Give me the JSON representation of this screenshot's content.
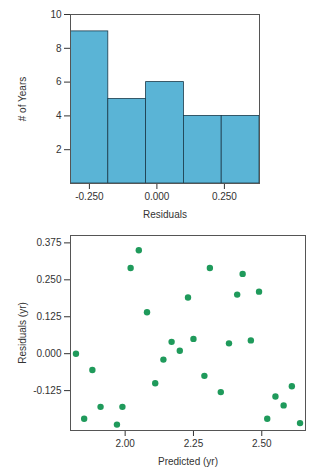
{
  "chart_data": [
    {
      "type": "histogram",
      "xlabel": "Residuals",
      "ylabel": "# of Years",
      "bins": [
        -0.32,
        -0.18,
        -0.04,
        0.1,
        0.24,
        0.38
      ],
      "counts": [
        9,
        5,
        6,
        4,
        4
      ],
      "color": "#5ab4d6",
      "xlim": [
        -0.32,
        0.38
      ],
      "xticks": [
        {
          "value": -0.25,
          "label": "-0.250"
        },
        {
          "value": 0,
          "label": "0.000"
        },
        {
          "value": 0.25,
          "label": "0.250"
        }
      ],
      "ylim": [
        0,
        10
      ],
      "yticks": [
        2,
        4,
        6,
        8,
        10
      ],
      "grid": false
    },
    {
      "type": "scatter",
      "xlabel": "Predicted (yr)",
      "ylabel": "Residuals (yr)",
      "x": [
        1.82,
        1.85,
        1.88,
        1.91,
        1.97,
        1.99,
        2.02,
        2.05,
        2.08,
        2.11,
        2.14,
        2.17,
        2.2,
        2.23,
        2.25,
        2.29,
        2.31,
        2.35,
        2.38,
        2.41,
        2.43,
        2.46,
        2.49,
        2.52,
        2.55,
        2.58,
        2.61,
        2.64
      ],
      "values": [
        0.0,
        -0.22,
        -0.055,
        -0.18,
        -0.24,
        -0.18,
        0.29,
        0.35,
        0.14,
        -0.1,
        -0.02,
        0.04,
        0.01,
        0.19,
        0.05,
        -0.075,
        0.29,
        -0.13,
        0.035,
        0.2,
        0.27,
        0.045,
        0.21,
        -0.22,
        -0.145,
        -0.175,
        -0.11,
        -0.235
      ],
      "color": "#1f9a5b",
      "marker": "circle",
      "xlim": [
        1.8,
        2.66
      ],
      "xticks": [
        {
          "value": 2,
          "label": "2.00"
        },
        {
          "value": 2.25,
          "label": "2.25"
        },
        {
          "value": 2.5,
          "label": "2.50"
        }
      ],
      "ylim": [
        -0.26,
        0.4
      ],
      "yticks": [
        {
          "value": -0.125,
          "label": "-0.125"
        },
        {
          "value": 0,
          "label": "0.000"
        },
        {
          "value": 0.125,
          "label": "0.125"
        },
        {
          "value": 0.25,
          "label": "0.250"
        },
        {
          "value": 0.375,
          "label": "0.375"
        }
      ],
      "grid": false
    }
  ]
}
